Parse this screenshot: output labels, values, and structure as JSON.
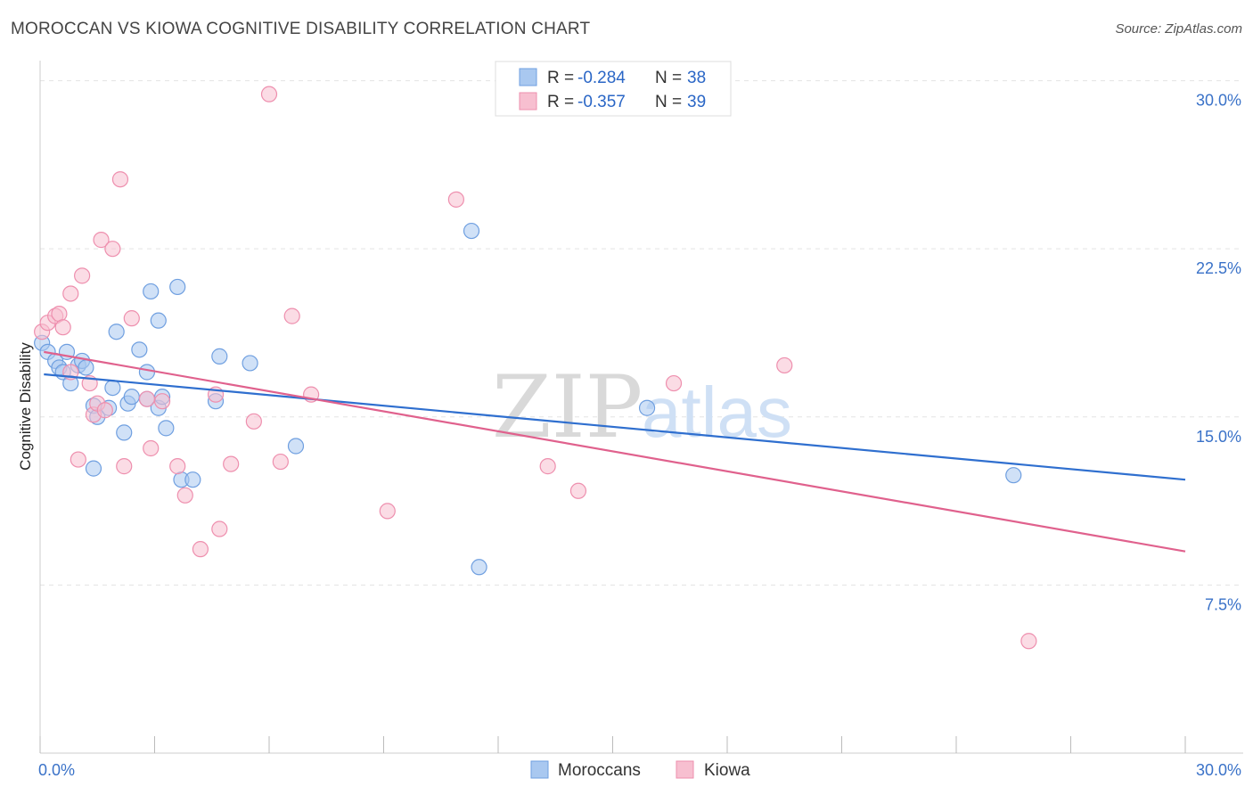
{
  "title": "MOROCCAN VS KIOWA COGNITIVE DISABILITY CORRELATION CHART",
  "source": "Source: ZipAtlas.com",
  "watermark": {
    "zip": "ZIP",
    "atlas": "atlas"
  },
  "chart_data": {
    "type": "scatter",
    "title": "MOROCCAN VS KIOWA COGNITIVE DISABILITY CORRELATION CHART",
    "xlabel": "",
    "ylabel": "Cognitive Disability",
    "xlim": [
      0,
      30
    ],
    "ylim": [
      0,
      30.5
    ],
    "x_tick_labels": [
      "0.0%",
      "30.0%"
    ],
    "y_ticks": [
      7.5,
      15.0,
      22.5,
      30.0
    ],
    "y_tick_labels": [
      "7.5%",
      "15.0%",
      "22.5%",
      "30.0%"
    ],
    "legend": [
      {
        "name": "Moroccans",
        "r_label": "R = ",
        "r": "-0.284",
        "n_label": "N = ",
        "n": "38",
        "color": "#a9c8f0",
        "stroke": "#6f9fe0",
        "line": "#2f6fcf"
      },
      {
        "name": "Kiowa",
        "r_label": "R = ",
        "r": "-0.357",
        "n_label": "N = ",
        "n": "39",
        "color": "#f7bfd0",
        "stroke": "#ee8fae",
        "line": "#e0618d"
      }
    ],
    "series": [
      {
        "name": "Moroccans",
        "trend": [
          [
            0.1,
            16.9
          ],
          [
            30,
            12.2
          ]
        ],
        "points": [
          [
            0.05,
            18.3
          ],
          [
            0.2,
            17.9
          ],
          [
            0.4,
            17.5
          ],
          [
            0.5,
            17.2
          ],
          [
            0.6,
            17.0
          ],
          [
            0.7,
            17.9
          ],
          [
            0.8,
            16.5
          ],
          [
            1.0,
            17.3
          ],
          [
            1.1,
            17.5
          ],
          [
            1.2,
            17.2
          ],
          [
            1.4,
            15.5
          ],
          [
            1.5,
            15.0
          ],
          [
            1.9,
            16.3
          ],
          [
            2.0,
            18.8
          ],
          [
            2.2,
            14.3
          ],
          [
            2.3,
            15.6
          ],
          [
            2.4,
            15.9
          ],
          [
            2.6,
            18.0
          ],
          [
            2.8,
            15.8
          ],
          [
            2.8,
            17.0
          ],
          [
            2.9,
            20.6
          ],
          [
            3.1,
            19.3
          ],
          [
            3.1,
            15.4
          ],
          [
            3.2,
            15.9
          ],
          [
            3.3,
            14.5
          ],
          [
            3.6,
            20.8
          ],
          [
            3.7,
            12.2
          ],
          [
            4.0,
            12.2
          ],
          [
            4.6,
            15.7
          ],
          [
            4.7,
            17.7
          ],
          [
            5.5,
            17.4
          ],
          [
            6.7,
            13.7
          ],
          [
            11.3,
            23.3
          ],
          [
            11.5,
            8.3
          ],
          [
            15.9,
            15.4
          ],
          [
            25.5,
            12.4
          ],
          [
            1.4,
            12.7
          ],
          [
            1.8,
            15.4
          ]
        ]
      },
      {
        "name": "Kiowa",
        "trend": [
          [
            0.1,
            17.9
          ],
          [
            30,
            9.0
          ]
        ],
        "points": [
          [
            0.05,
            18.8
          ],
          [
            0.2,
            19.2
          ],
          [
            0.4,
            19.5
          ],
          [
            0.5,
            19.6
          ],
          [
            0.6,
            19.0
          ],
          [
            0.8,
            20.5
          ],
          [
            0.8,
            17.0
          ],
          [
            1.0,
            13.1
          ],
          [
            1.1,
            21.3
          ],
          [
            1.3,
            16.5
          ],
          [
            1.4,
            15.1
          ],
          [
            1.5,
            15.6
          ],
          [
            1.6,
            22.9
          ],
          [
            1.7,
            15.3
          ],
          [
            1.9,
            22.5
          ],
          [
            2.1,
            25.6
          ],
          [
            2.2,
            12.8
          ],
          [
            2.4,
            19.4
          ],
          [
            2.8,
            15.8
          ],
          [
            2.9,
            13.6
          ],
          [
            3.2,
            15.7
          ],
          [
            3.6,
            12.8
          ],
          [
            3.8,
            11.5
          ],
          [
            4.2,
            9.1
          ],
          [
            4.6,
            16.0
          ],
          [
            4.7,
            10.0
          ],
          [
            5.0,
            12.9
          ],
          [
            5.6,
            14.8
          ],
          [
            6.0,
            29.4
          ],
          [
            6.3,
            13.0
          ],
          [
            6.6,
            19.5
          ],
          [
            7.1,
            16.0
          ],
          [
            9.1,
            10.8
          ],
          [
            10.9,
            24.7
          ],
          [
            13.3,
            12.8
          ],
          [
            14.1,
            11.7
          ],
          [
            16.6,
            16.5
          ],
          [
            19.5,
            17.3
          ],
          [
            25.9,
            5.0
          ]
        ]
      }
    ]
  }
}
